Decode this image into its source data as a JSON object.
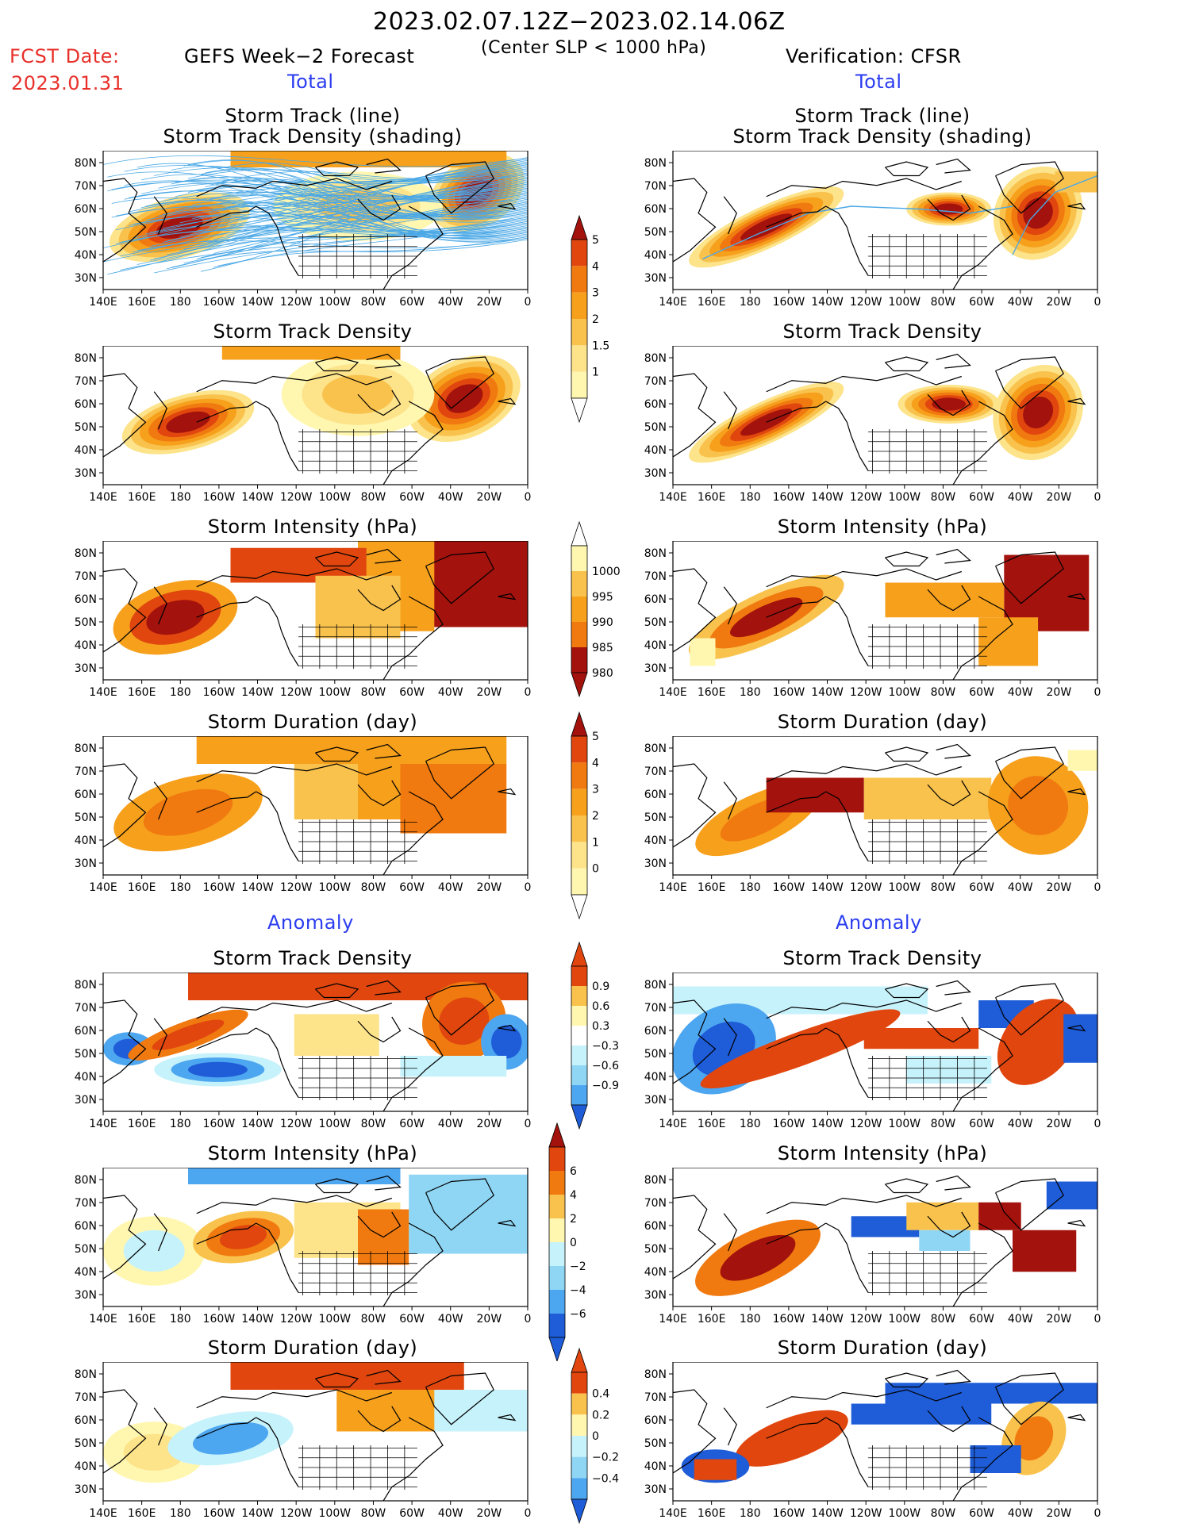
{
  "header": {
    "period": "2023.02.07.12Z−2023.02.14.06Z",
    "fcst_label": "FCST Date:",
    "fcst_date": "2023.01.31",
    "left_title": "GEFS Week−2 Forecast",
    "criterion": "(Center SLP < 1000 hPa)",
    "right_title": "Verification: CFSR",
    "total_left": "Total",
    "total_right": "Total",
    "anomaly_left": "Anomaly",
    "anomaly_right": "Anomaly"
  },
  "panel_titles": {
    "track_line": "Storm Track (line)",
    "track_shading": "Storm Track Density (shading)",
    "density": "Storm Track Density",
    "intensity": "Storm Intensity (hPa)",
    "duration": "Storm Duration (day)"
  },
  "axes": {
    "lon_labels": [
      "140E",
      "160E",
      "180",
      "160W",
      "140W",
      "120W",
      "100W",
      "80W",
      "60W",
      "40W",
      "20W",
      "0"
    ],
    "lat_labels": [
      "80N",
      "70N",
      "60N",
      "50N",
      "40N",
      "30N"
    ]
  },
  "colorbars": {
    "total_density": [
      "1",
      "1.5",
      "2",
      "3",
      "4",
      "5"
    ],
    "total_intensity": [
      "1000",
      "995",
      "990",
      "985",
      "980"
    ],
    "total_duration": [
      "0",
      "1",
      "2",
      "3",
      "4",
      "5"
    ],
    "anom_density": [
      "−0.9",
      "−0.6",
      "−0.3",
      "0.3",
      "0.6",
      "0.9"
    ],
    "anom_intensity": [
      "−6",
      "−4",
      "−2",
      "0",
      "2",
      "4",
      "6"
    ],
    "anom_duration": [
      "−0.4",
      "−0.2",
      "0",
      "0.2",
      "0.4"
    ]
  },
  "colors": {
    "warm": [
      "#fff7b0",
      "#fde38a",
      "#f9c24d",
      "#f6a01c",
      "#f07a10",
      "#e0460e",
      "#a3120c"
    ],
    "cool": [
      "#c6f2fb",
      "#8fd6f5",
      "#4da6f0",
      "#1e5cd8"
    ],
    "track_line": "#4aa8e6"
  }
}
